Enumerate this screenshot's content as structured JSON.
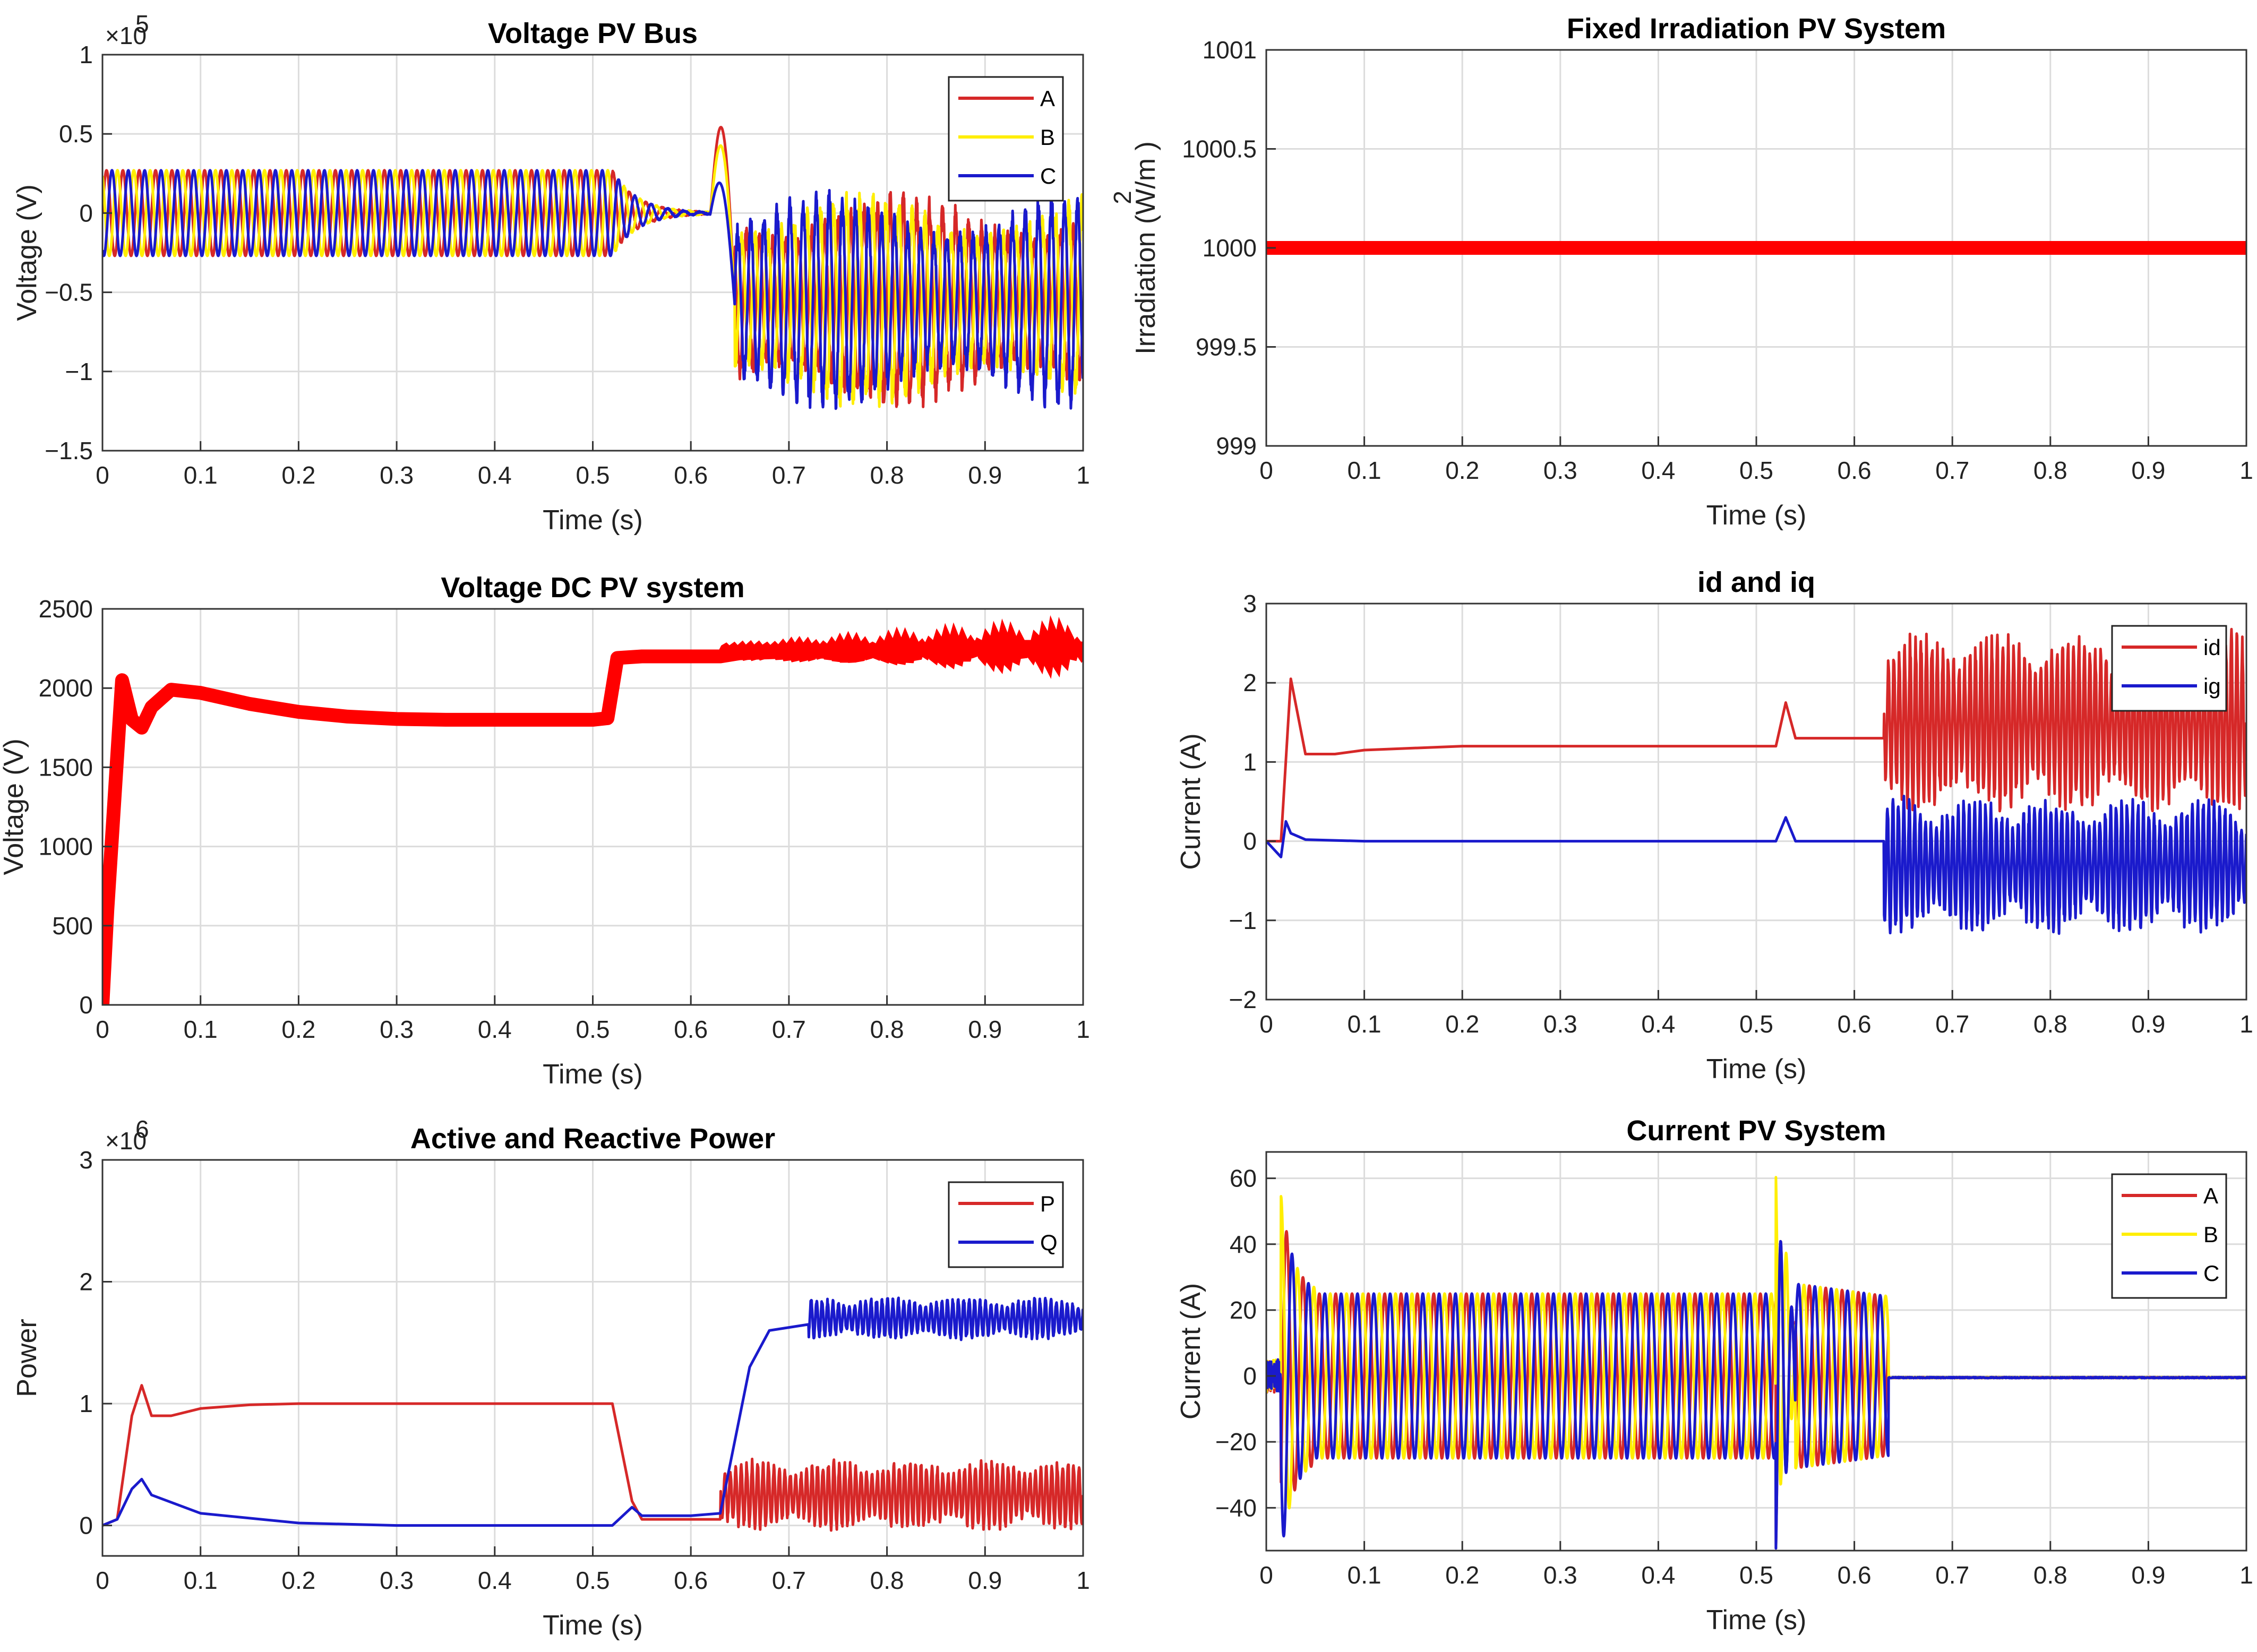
{
  "chart_data": [
    {
      "id": "voltage-pv-bus",
      "type": "line",
      "title": "Voltage PV Bus",
      "xlabel": "Time (s)",
      "ylabel": "Voltage (V)",
      "xlim": [
        0,
        1
      ],
      "ylim": [
        -1.5,
        1
      ],
      "xticks": [
        0,
        0.1,
        0.2,
        0.3,
        0.4,
        0.5,
        0.6,
        0.7,
        0.8,
        0.9,
        1
      ],
      "xtick_labels": [
        "0",
        "0.1",
        "0.2",
        "0.3",
        "0.4",
        "0.5",
        "0.6",
        "0.7",
        "0.8",
        "0.9",
        "1"
      ],
      "yticks": [
        -1.5,
        -1,
        -0.5,
        0,
        0.5,
        1
      ],
      "ytick_labels": [
        "−1.5",
        "−1",
        "−0.5",
        "0",
        "0.5",
        "1"
      ],
      "y_multiplier": "×10",
      "y_exponent": "5",
      "grid": true,
      "legend": "top-right",
      "series": [
        {
          "name": "A",
          "color": "#d62828",
          "phase": 0
        },
        {
          "name": "B",
          "color": "#ffee00",
          "phase": 2.094
        },
        {
          "name": "C",
          "color": "#1a1acc",
          "phase": 4.189
        }
      ],
      "segments": [
        {
          "t_start": 0,
          "t_end": 0.52,
          "amplitude": 0.27,
          "offset": 0
        },
        {
          "t_start": 0.52,
          "t_end": 0.62,
          "amplitude": "decay to 0.02",
          "offset": 0
        },
        {
          "t_start": 0.62,
          "t_end": 0.64,
          "peak": 0.82,
          "note": "spike"
        },
        {
          "t_start": 0.64,
          "t_end": 1,
          "amplitude": 0.55,
          "offset": -0.55
        }
      ]
    },
    {
      "id": "fixed-irradiation",
      "type": "line",
      "title": "Fixed Irradiation PV System",
      "xlabel": "Time (s)",
      "ylabel": "Irradiation (W/m )",
      "ylabel_superscript": "2",
      "xlim": [
        0,
        1
      ],
      "ylim": [
        999,
        1001
      ],
      "xticks": [
        0,
        0.1,
        0.2,
        0.3,
        0.4,
        0.5,
        0.6,
        0.7,
        0.8,
        0.9,
        1
      ],
      "xtick_labels": [
        "0",
        "0.1",
        "0.2",
        "0.3",
        "0.4",
        "0.5",
        "0.6",
        "0.7",
        "0.8",
        "0.9",
        "1"
      ],
      "yticks": [
        999,
        999.5,
        1000,
        1000.5,
        1001
      ],
      "ytick_labels": [
        "999",
        "999.5",
        "1000",
        "1000.5",
        "1001"
      ],
      "grid": true,
      "series": [
        {
          "name": "Irradiation",
          "color": "#ff0000",
          "x": [
            0,
            1
          ],
          "y": [
            1000,
            1000
          ]
        }
      ]
    },
    {
      "id": "voltage-dc",
      "type": "line",
      "title": "Voltage DC PV system",
      "xlabel": "Time (s)",
      "ylabel": "Voltage (V)",
      "xlim": [
        0,
        1
      ],
      "ylim": [
        0,
        2500
      ],
      "xticks": [
        0,
        0.1,
        0.2,
        0.3,
        0.4,
        0.5,
        0.6,
        0.7,
        0.8,
        0.9,
        1
      ],
      "xtick_labels": [
        "0",
        "0.1",
        "0.2",
        "0.3",
        "0.4",
        "0.5",
        "0.6",
        "0.7",
        "0.8",
        "0.9",
        "1"
      ],
      "yticks": [
        0,
        500,
        1000,
        1500,
        2000,
        2500
      ],
      "ytick_labels": [
        "0",
        "500",
        "1000",
        "1500",
        "2000",
        "2500"
      ],
      "grid": true,
      "series": [
        {
          "name": "Vdc",
          "color": "#ff0000",
          "x": [
            0,
            0.005,
            0.02,
            0.03,
            0.04,
            0.05,
            0.07,
            0.1,
            0.15,
            0.2,
            0.25,
            0.3,
            0.35,
            0.4,
            0.45,
            0.5,
            0.515,
            0.525,
            0.55,
            0.6,
            0.63,
            0.65,
            0.7,
            0.75,
            0.8,
            0.85,
            0.9,
            0.95,
            1
          ],
          "y": [
            0,
            600,
            2050,
            1800,
            1750,
            1880,
            1990,
            1970,
            1900,
            1850,
            1820,
            1805,
            1800,
            1800,
            1800,
            1800,
            1810,
            2190,
            2200,
            2200,
            2200,
            2220,
            2230,
            2230,
            2240,
            2250,
            2260,
            2260,
            2250
          ]
        }
      ]
    },
    {
      "id": "id-iq",
      "type": "line",
      "title": "id and iq",
      "xlabel": "Time (s)",
      "ylabel": "Current (A)",
      "xlim": [
        0,
        1
      ],
      "ylim": [
        -2,
        3
      ],
      "xticks": [
        0,
        0.1,
        0.2,
        0.3,
        0.4,
        0.5,
        0.6,
        0.7,
        0.8,
        0.9,
        1
      ],
      "xtick_labels": [
        "0",
        "0.1",
        "0.2",
        "0.3",
        "0.4",
        "0.5",
        "0.6",
        "0.7",
        "0.8",
        "0.9",
        "1"
      ],
      "yticks": [
        -2,
        -1,
        0,
        1,
        2,
        3
      ],
      "ytick_labels": [
        "−2",
        "−1",
        "0",
        "1",
        "2",
        "3"
      ],
      "grid": true,
      "legend": "top-right",
      "series": [
        {
          "name": "id",
          "color": "#d62828",
          "x": [
            0,
            0.015,
            0.025,
            0.04,
            0.07,
            0.1,
            0.2,
            0.3,
            0.4,
            0.52,
            0.53,
            0.54,
            0.6,
            0.63
          ],
          "y": [
            0,
            0,
            2.05,
            1.1,
            1.1,
            1.15,
            1.2,
            1.2,
            1.2,
            1.2,
            1.75,
            1.3,
            1.3,
            1.3
          ],
          "oscillation_after": 0.63,
          "oscillation_center": 1.5,
          "oscillation_amplitude": 1.2
        },
        {
          "name": "ig",
          "color": "#1a1acc",
          "x": [
            0,
            0.015,
            0.02,
            0.025,
            0.04,
            0.1,
            0.2,
            0.3,
            0.4,
            0.52,
            0.53,
            0.54,
            0.6,
            0.63
          ],
          "y": [
            0,
            -0.2,
            0.25,
            0.1,
            0.02,
            0,
            0,
            0,
            0,
            0,
            0.3,
            0,
            0,
            0
          ],
          "oscillation_after": 0.63,
          "oscillation_center": -0.3,
          "oscillation_amplitude": 0.9
        }
      ]
    },
    {
      "id": "active-reactive-power",
      "type": "line",
      "title": "Active and Reactive Power",
      "xlabel": "Time (s)",
      "ylabel": "Power",
      "xlim": [
        0,
        1
      ],
      "ylim": [
        -0.25,
        3
      ],
      "xticks": [
        0,
        0.1,
        0.2,
        0.3,
        0.4,
        0.5,
        0.6,
        0.7,
        0.8,
        0.9,
        1
      ],
      "xtick_labels": [
        "0",
        "0.1",
        "0.2",
        "0.3",
        "0.4",
        "0.5",
        "0.6",
        "0.7",
        "0.8",
        "0.9",
        "1"
      ],
      "yticks": [
        0,
        1,
        2,
        3
      ],
      "ytick_labels": [
        "0",
        "1",
        "2",
        "3"
      ],
      "y_multiplier": "×10",
      "y_exponent": "6",
      "grid": true,
      "legend": "top-right",
      "series": [
        {
          "name": "P",
          "color": "#d62828",
          "x": [
            0,
            0.015,
            0.03,
            0.04,
            0.05,
            0.07,
            0.1,
            0.15,
            0.2,
            0.3,
            0.4,
            0.52,
            0.54,
            0.55,
            0.6,
            0.63
          ],
          "y": [
            0,
            0.05,
            0.9,
            1.15,
            0.9,
            0.9,
            0.96,
            0.99,
            1.0,
            1.0,
            1.0,
            1.0,
            0.2,
            0.05,
            0.05,
            0.05
          ],
          "oscillation_after": 0.63,
          "oscillation_center": 0.25,
          "oscillation_amplitude": 0.3
        },
        {
          "name": "Q",
          "color": "#1a1acc",
          "x": [
            0,
            0.015,
            0.03,
            0.04,
            0.05,
            0.1,
            0.2,
            0.3,
            0.4,
            0.52,
            0.54,
            0.55,
            0.6,
            0.63,
            0.66,
            0.68,
            0.72
          ],
          "y": [
            0,
            0.05,
            0.3,
            0.38,
            0.25,
            0.1,
            0.02,
            0,
            0,
            0,
            0.15,
            0.08,
            0.08,
            0.1,
            1.3,
            1.6,
            1.65
          ],
          "oscillation_after": 0.72,
          "oscillation_center": 1.7,
          "oscillation_amplitude": 0.18
        }
      ]
    },
    {
      "id": "current-pv",
      "type": "line",
      "title": "Current PV System",
      "xlabel": "Time (s)",
      "ylabel": "Current (A)",
      "xlim": [
        0,
        1
      ],
      "ylim": [
        -53,
        68
      ],
      "xticks": [
        0,
        0.1,
        0.2,
        0.3,
        0.4,
        0.5,
        0.6,
        0.7,
        0.8,
        0.9,
        1
      ],
      "xtick_labels": [
        "0",
        "0.1",
        "0.2",
        "0.3",
        "0.4",
        "0.5",
        "0.6",
        "0.7",
        "0.8",
        "0.9",
        "1"
      ],
      "yticks": [
        -40,
        -20,
        0,
        20,
        40,
        60
      ],
      "ytick_labels": [
        "−40",
        "−20",
        "0",
        "20",
        "40",
        "60"
      ],
      "grid": true,
      "legend": "top-right",
      "series": [
        {
          "name": "A",
          "color": "#d62828",
          "phase": 0
        },
        {
          "name": "B",
          "color": "#ffee00",
          "phase": 2.094
        },
        {
          "name": "C",
          "color": "#1a1acc",
          "phase": 4.189
        }
      ],
      "segments": [
        {
          "t_start": 0,
          "t_end": 0.05,
          "note": "startup transient",
          "peak": 45
        },
        {
          "t_start": 0.05,
          "t_end": 0.52,
          "amplitude": 25,
          "offset": 0
        },
        {
          "t_start": 0.52,
          "t_end": 0.54,
          "note": "fault transient",
          "peak": 68,
          "trough": -52
        },
        {
          "t_start": 0.54,
          "t_end": 0.635,
          "amplitude": 28,
          "offset": 0
        },
        {
          "t_start": 0.635,
          "t_end": 1,
          "amplitude": 0,
          "offset": 0
        }
      ]
    }
  ]
}
